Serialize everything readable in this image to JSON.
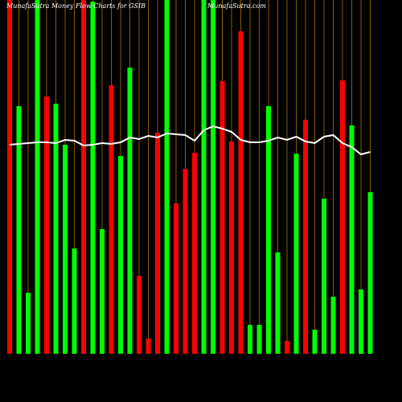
{
  "chart_data": {
    "type": "bar",
    "title": "MunafaSutra  Money Flow  Charts for GSIB",
    "watermark": "MunafaSutra.com",
    "categories": [
      null,
      null,
      null,
      null,
      null,
      null,
      null,
      null,
      null,
      null,
      null,
      null,
      null,
      null,
      null,
      null,
      null,
      null,
      null,
      null,
      null,
      null,
      null,
      null,
      null,
      null,
      null,
      null,
      null,
      null,
      null,
      null,
      null,
      null,
      null,
      null,
      null,
      null,
      null,
      null
    ],
    "values": [
      440,
      308,
      76,
      440,
      320,
      311,
      260,
      131,
      440,
      438,
      155,
      334,
      246,
      356,
      97,
      19,
      275,
      440,
      187,
      230,
      250,
      440,
      440,
      339,
      264,
      401,
      36,
      36,
      308,
      126,
      16,
      249,
      291,
      30,
      193,
      71,
      340,
      284,
      80,
      201
    ],
    "bar_colors": [
      "#ff0000",
      "#00ff00",
      "#00ff00",
      "#00ff00",
      "#ff0000",
      "#00ff00",
      "#00ff00",
      "#00ff00",
      "#ff0000",
      "#00ff00",
      "#00ff00",
      "#ff0000",
      "#00ff00",
      "#00ff00",
      "#ff0000",
      "#ff0000",
      "#ff0000",
      "#00ff00",
      "#ff0000",
      "#ff0000",
      "#ff0000",
      "#00ff00",
      "#00ff00",
      "#ff0000",
      "#ff0000",
      "#ff0000",
      "#00ff00",
      "#00ff00",
      "#00ff00",
      "#00ff00",
      "#ff0000",
      "#00ff00",
      "#ff0000",
      "#00ff00",
      "#00ff00",
      "#00ff00",
      "#ff0000",
      "#00ff00",
      "#00ff00",
      "#00ff00"
    ],
    "line": {
      "color": "#ffffff",
      "values": [
        260,
        261,
        262,
        263,
        263,
        262,
        266,
        265,
        259,
        260,
        262,
        261,
        263,
        269,
        267,
        271,
        269,
        274,
        273,
        272,
        265,
        278,
        283,
        280,
        276,
        266,
        263,
        263,
        265,
        269,
        266,
        270,
        264,
        262,
        270,
        272,
        262,
        257,
        248,
        251
      ]
    },
    "grid_color": "#8b5a00",
    "ylim": [
      0,
      440
    ]
  }
}
